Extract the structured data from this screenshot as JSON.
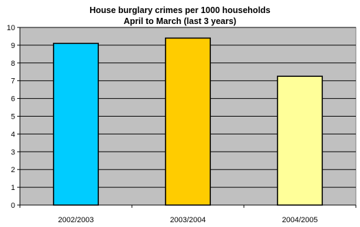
{
  "chart_data": {
    "type": "bar",
    "title": "House burglary crimes per 1000 households",
    "subtitle": "April to March (last 3 years)",
    "categories": [
      "2002/2003",
      "2003/2004",
      "2004/2005"
    ],
    "values": [
      9.1,
      9.4,
      7.25
    ],
    "bar_colors": [
      "#00ccff",
      "#ffcc00",
      "#ffff99"
    ],
    "ylim": [
      0,
      10
    ],
    "ytick_step": 1,
    "xlabel": "",
    "ylabel": "",
    "grid": true,
    "plot_background": "#c0c0c0",
    "legend": "none"
  }
}
